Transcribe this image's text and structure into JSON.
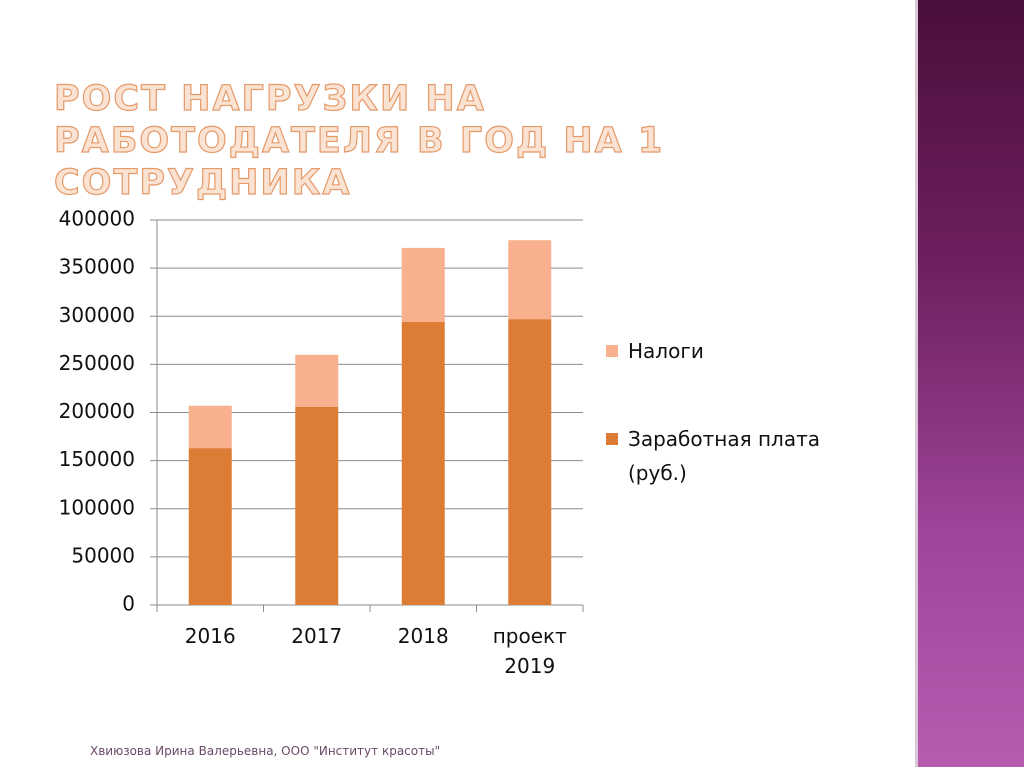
{
  "chart_data": {
    "type": "stacked_bar",
    "title": "РОСТ НАГРУЗКИ НА РАБОТОДАТЕЛЯ В ГОД  НА 1 СОТРУДНИКА",
    "categories": [
      "2016",
      "2017",
      "2018",
      "проект 2019"
    ],
    "series": [
      {
        "name": "Заработная плата (руб.)",
        "color": "#dd7d35",
        "values": [
          163000,
          206000,
          294000,
          297000
        ]
      },
      {
        "name": "Налоги",
        "color": "#f8b08e",
        "values": [
          44000,
          54000,
          77000,
          82000
        ]
      }
    ],
    "ylim": [
      0,
      400000
    ],
    "yticks": [
      0,
      50000,
      100000,
      150000,
      200000,
      250000,
      300000,
      350000,
      400000
    ],
    "grid": true,
    "legend": "right"
  },
  "footer": "Хвиюзова Ирина Валерьевна, ООО \"Институт красоты\""
}
